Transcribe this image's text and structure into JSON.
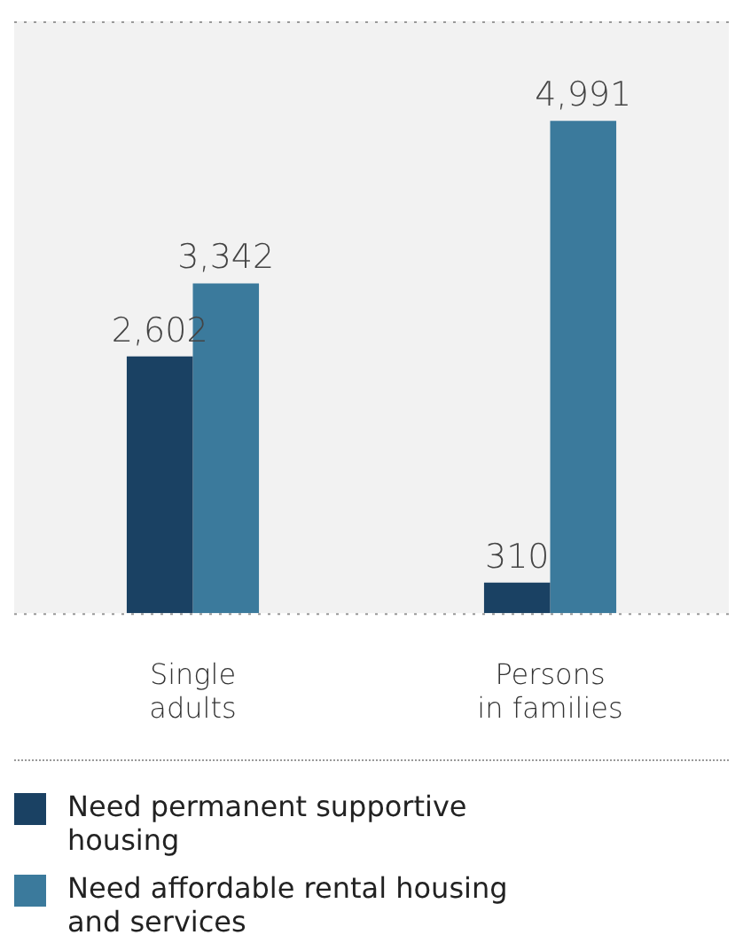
{
  "chart_data": {
    "type": "bar",
    "categories": [
      "Single adults",
      "Persons in families"
    ],
    "series": [
      {
        "name": "Need permanent supportive housing",
        "color": "#1a4163",
        "values": [
          2602,
          310
        ],
        "value_labels": [
          "2,602",
          "310"
        ]
      },
      {
        "name": "Need affordable rental housing and services",
        "color": "#3b7a9c",
        "values": [
          3342,
          4991
        ],
        "value_labels": [
          "3,342",
          "4,991"
        ]
      }
    ],
    "legend": "bottom"
  }
}
